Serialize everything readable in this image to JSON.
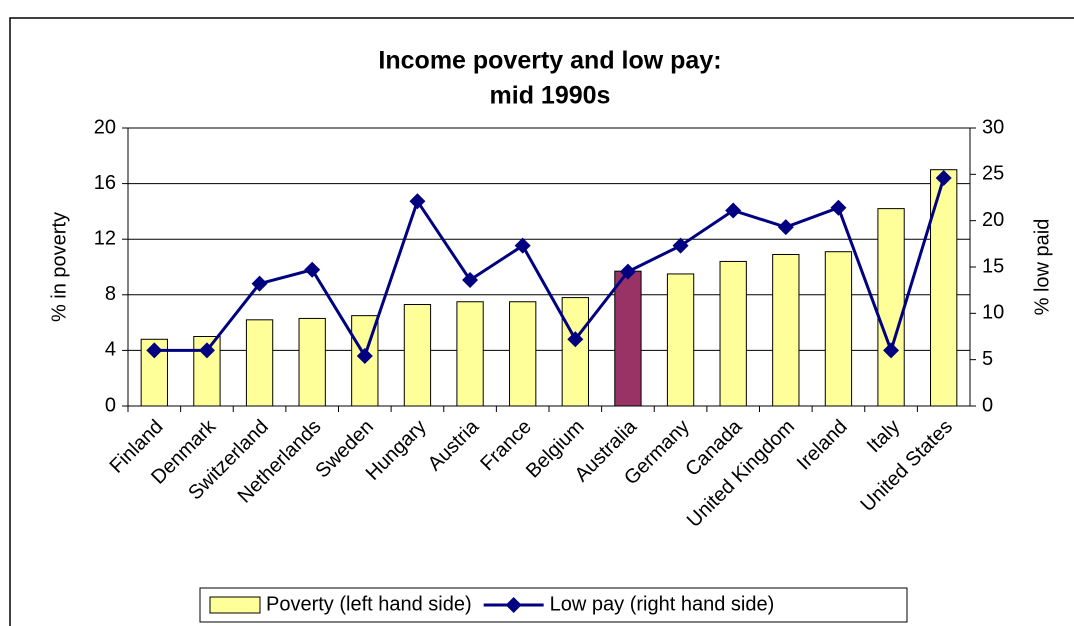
{
  "chart_data": {
    "type": "bar_line",
    "title": [
      "Income poverty and low pay:",
      "mid 1990s"
    ],
    "ylabel": "% in poverty",
    "y2label": "% low paid",
    "categories": [
      "Finland",
      "Denmark",
      "Switzerland",
      "Netherlands",
      "Sweden",
      "Hungary",
      "Austria",
      "France",
      "Belgium",
      "Australia",
      "Germany",
      "Canada",
      "United Kingdom",
      "Ireland",
      "Italy",
      "United States"
    ],
    "series": [
      {
        "name": "Poverty (left hand side)",
        "type": "bar",
        "color": "#FFFF99",
        "colors": [
          "#FFFF99",
          "#FFFF99",
          "#FFFF99",
          "#FFFF99",
          "#FFFF99",
          "#FFFF99",
          "#FFFF99",
          "#FFFF99",
          "#FFFF99",
          "#993366",
          "#FFFF99",
          "#FFFF99",
          "#FFFF99",
          "#FFFF99",
          "#FFFF99",
          "#FFFF99"
        ],
        "values": [
          4.8,
          5.0,
          6.2,
          6.3,
          6.5,
          7.3,
          7.5,
          7.5,
          7.8,
          9.7,
          9.5,
          10.4,
          10.9,
          11.1,
          14.2,
          17.0
        ]
      },
      {
        "name": "Low pay (right hand side)",
        "type": "line",
        "axis": "y2",
        "color": "#000080",
        "values": [
          6.0,
          6.0,
          13.2,
          14.7,
          5.4,
          22.1,
          13.6,
          17.3,
          7.2,
          14.5,
          17.3,
          21.1,
          19.3,
          21.4,
          6.0,
          24.6
        ]
      }
    ],
    "ylim": [
      0,
      20
    ],
    "yticks": [
      0,
      4,
      8,
      12,
      16,
      20
    ],
    "y2lim": [
      0,
      30
    ],
    "y2ticks": [
      0,
      5,
      10,
      15,
      20,
      25,
      30
    ],
    "grid": true,
    "legend": "bottom"
  }
}
